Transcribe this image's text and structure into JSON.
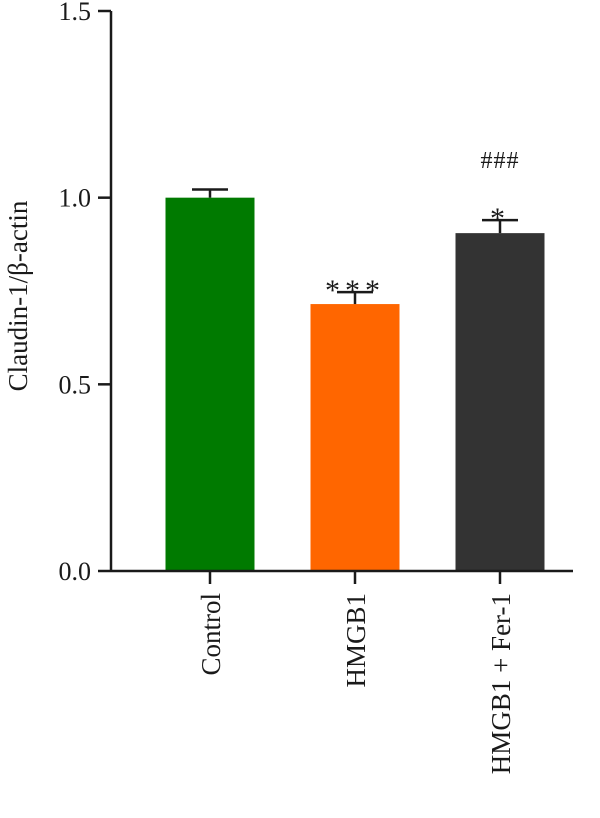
{
  "chart_data": {
    "type": "bar",
    "title": "",
    "xlabel": "",
    "ylabel": "Claudin-1/β-actin",
    "ylim": [
      0,
      1.5
    ],
    "yticks": [
      "0.0",
      "0.5",
      "1.0",
      "1.5"
    ],
    "categories": [
      "Control",
      "HMGB1",
      "HMGB1 + Fer-1"
    ],
    "values": [
      1.0,
      0.715,
      0.905
    ],
    "errors": [
      0.022,
      0.032,
      0.035
    ],
    "colors": [
      "#007a00",
      "#ff6600",
      "#333333"
    ],
    "annotations": [
      {
        "category": "HMGB1",
        "lines": [
          "***"
        ]
      },
      {
        "category": "HMGB1 + Fer-1",
        "lines": [
          "###",
          "*"
        ]
      }
    ]
  }
}
